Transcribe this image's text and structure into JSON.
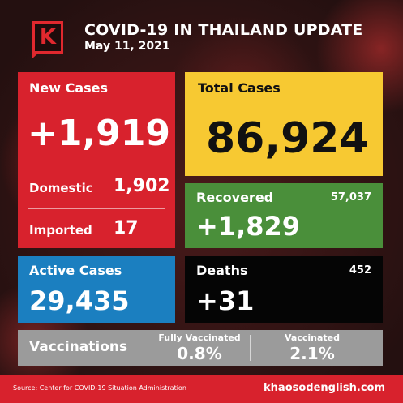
{
  "header": {
    "logo_letter": "K",
    "title": "COVID-19 IN THAILAND UPDATE",
    "date": "May 11, 2021"
  },
  "new_cases": {
    "label": "New Cases",
    "value": "+1,919",
    "domestic_label": "Domestic",
    "domestic_value": "1,902",
    "imported_label": "Imported",
    "imported_value": "17"
  },
  "total_cases": {
    "label": "Total Cases",
    "value": "86,924"
  },
  "recovered": {
    "label": "Recovered",
    "total": "57,037",
    "value": "+1,829"
  },
  "active_cases": {
    "label": "Active Cases",
    "value": "29,435"
  },
  "deaths": {
    "label": "Deaths",
    "total": "452",
    "value": "+31"
  },
  "vaccinations": {
    "label": "Vaccinations",
    "fully_label": "Fully Vaccinated",
    "fully_value": "0.8%",
    "vaccinated_label": "Vaccinated",
    "vaccinated_value": "2.1%"
  },
  "footer": {
    "source": "Source: Center for COVID-19 Situation Administration",
    "site": "khaosodenglish.com"
  },
  "colors": {
    "red": "#d8222d",
    "yellow": "#f7c932",
    "green": "#4a8f3a",
    "blue": "#1b7fc0",
    "black": "#050505",
    "gray": "#9b9b9b"
  }
}
